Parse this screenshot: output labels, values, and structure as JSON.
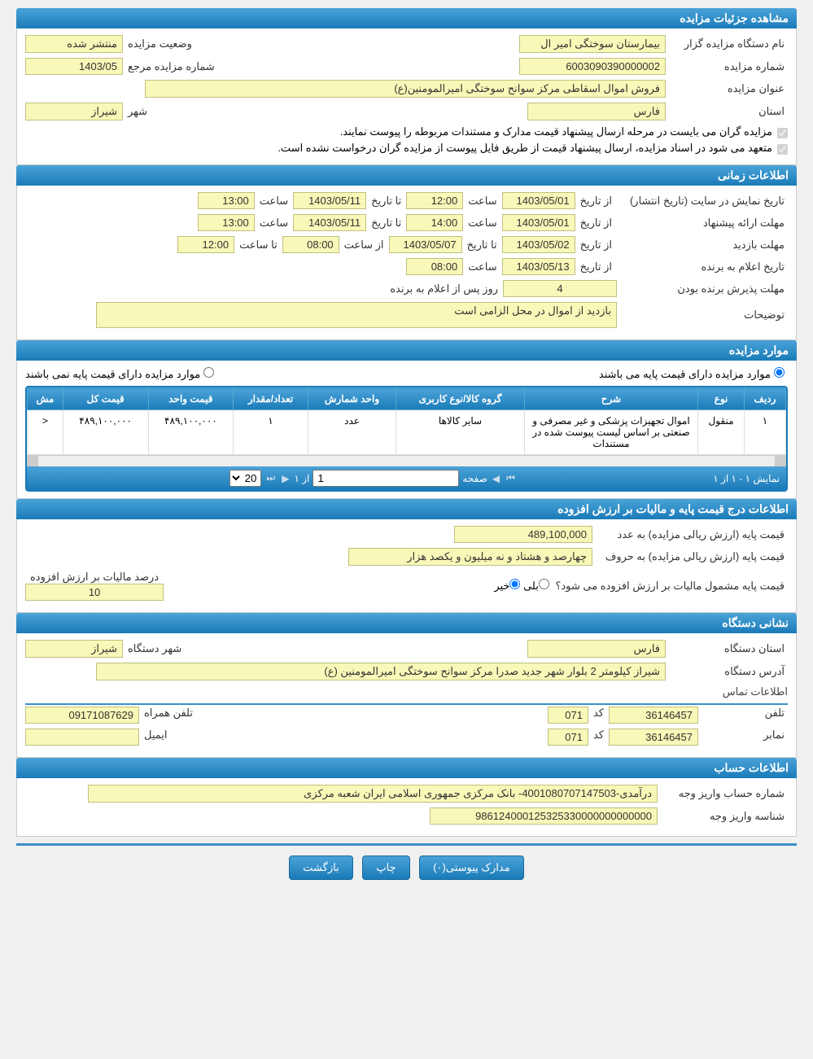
{
  "sections": {
    "details": "مشاهده جزئیات مزایده",
    "time": "اطلاعات زمانی",
    "items": "موارد مزایده",
    "price_tax": "اطلاعات درج قیمت پایه و مالیات بر ارزش افزوده",
    "org_address": "نشانی دستگاه",
    "account": "اطلاعات حساب"
  },
  "details": {
    "org_label": "نام دستگاه مزایده گزار",
    "org_value": "بیمارستان سوختگی امیر ال",
    "status_label": "وضعیت مزایده",
    "status_value": "منتشر شده",
    "auction_no_label": "شماره مزایده",
    "auction_no_value": "6003090390000002",
    "ref_no_label": "شماره مزایده مرجع",
    "ref_no_value": "1403/05",
    "title_label": "عنوان مزایده",
    "title_value": "فروش اموال اسقاطی مرکز سوانح سوختگی امیرالمومنین(ع)",
    "province_label": "استان",
    "province_value": "فارس",
    "city_label": "شهر",
    "city_value": "شیراز",
    "check1": "مزایده گران می بایست در مرحله ارسال پیشنهاد قیمت مدارک و مستندات مربوطه را پیوست نمایند.",
    "check2": "متعهد می شود در اسناد مزایده، ارسال پیشنهاد قیمت از طریق فایل پیوست از مزایده گران درخواست نشده است."
  },
  "time": {
    "publish_label": "تاریخ نمایش در سایت (تاریخ انتشار)",
    "from_date": "از تاریخ",
    "to_date": "تا تاریخ",
    "hour": "ساعت",
    "from_hour": "از ساعت",
    "to_hour": "تا ساعت",
    "publish_from": "1403/05/01",
    "publish_hour1": "12:00",
    "publish_to": "1403/05/11",
    "publish_hour2": "13:00",
    "bid_label": "مهلت ارائه پیشنهاد",
    "bid_from": "1403/05/01",
    "bid_hour1": "14:00",
    "bid_to": "1403/05/11",
    "bid_hour2": "13:00",
    "visit_label": "مهلت بازدید",
    "visit_from": "1403/05/02",
    "visit_to": "1403/05/07",
    "visit_hour1": "08:00",
    "visit_hour2": "12:00",
    "announce_label": "تاریخ اعلام به برنده",
    "announce_date": "1403/05/13",
    "announce_hour": "08:00",
    "accept_label": "مهلت پذیرش برنده بودن",
    "accept_days": "4",
    "accept_suffix": "روز پس از اعلام به برنده",
    "desc_label": "توضیحات",
    "desc_value": "بازدید از اموال در محل الزامی است"
  },
  "items": {
    "has_base_label": "موارد مزایده دارای قیمت پایه می باشند",
    "no_base_label": "موارد مزایده دارای قیمت پایه نمی باشند",
    "selected": "has",
    "columns": [
      "ردیف",
      "نوع",
      "شرح",
      "گروه کالا/نوع کاربری",
      "واحد شمارش",
      "تعداد/مقدار",
      "قیمت واحد",
      "قیمت کل",
      "مش"
    ],
    "rows": [
      {
        "idx": "۱",
        "type": "منقول",
        "desc": "اموال تجهیزات پزشکی و غیر مصرفی و صنعتی بر اساس لیست پیوست شده در مستندات",
        "group": "سایر کالاها",
        "unit": "عدد",
        "qty": "۱",
        "unit_price": "۴۸۹,۱۰۰,۰۰۰",
        "total": "۴۸۹,۱۰۰,۰۰۰",
        "more": "<"
      }
    ],
    "pager": {
      "display": "نمایش ۱ - ۱ از ۱",
      "page_label": "صفحه",
      "page_val": "1",
      "of": "از ۱",
      "size": "20"
    }
  },
  "price": {
    "num_label": "قیمت پایه (ارزش ریالی مزایده) به عدد",
    "num_value": "489,100,000",
    "word_label": "قیمت پایه (ارزش ریالی مزایده) به حروف",
    "word_value": "چهارصد و هشتاد و نه میلیون و یکصد هزار",
    "vat_q": "قیمت پایه مشمول مالیات بر ارزش افزوده می شود؟",
    "yes": "بلی",
    "no": "خیر",
    "vat_pct_label": "درصد مالیات بر ارزش افزوده",
    "vat_pct": "10"
  },
  "org": {
    "prov_label": "استان دستگاه",
    "prov": "فارس",
    "city_label": "شهر دستگاه",
    "city": "شیراز",
    "addr_label": "آدرس دستگاه",
    "addr": "شیراز کیلومتر 2 بلوار شهر جدید صدرا مرکز سوانح سوختگی امیرالمومنین (ع)",
    "contact_title": "اطلاعات تماس",
    "tel_label": "تلفن",
    "tel": "36146457",
    "code_label": "کد",
    "tel_code": "071",
    "mobile_label": "تلفن همراه",
    "mobile": "09171087629",
    "fax_label": "نمابر",
    "fax": "36146457",
    "fax_code": "071",
    "email_label": "ایمیل",
    "email": ""
  },
  "account": {
    "acc_label": "شماره حساب واریز وجه",
    "acc": "درآمدی-4001080707147503- بانک مرکزی جمهوری اسلامی ایران شعبه مرکزی",
    "id_label": "شناسه واریز وجه",
    "id": "986124000125325330000000000000"
  },
  "buttons": {
    "attach": "مدارک پیوستی(۰)",
    "print": "چاپ",
    "back": "بازگشت"
  },
  "colors": {
    "header_bg": "#1a7bb8",
    "value_bg": "#f8f8b8"
  }
}
